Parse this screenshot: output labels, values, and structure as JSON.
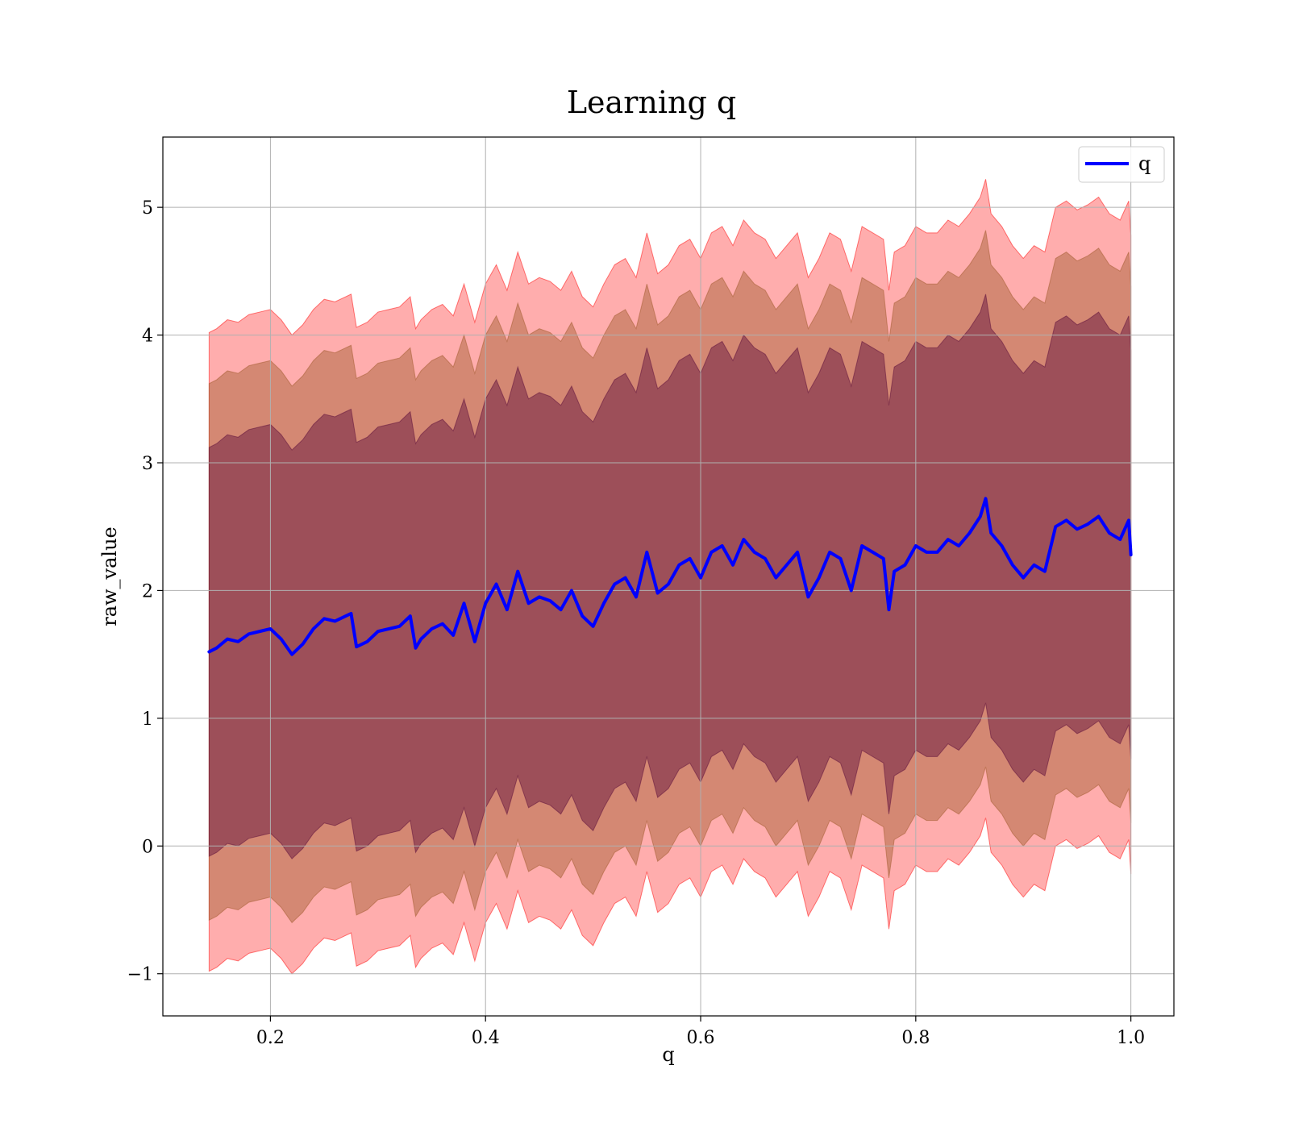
{
  "chart_data": {
    "type": "area",
    "title": "Learning q",
    "xlabel": "q",
    "ylabel": "raw_value",
    "xlim": [
      0.1,
      1.04
    ],
    "ylim": [
      -1.33,
      5.55
    ],
    "xticks": [
      {
        "value": 0.2,
        "label": "0.2"
      },
      {
        "value": 0.4,
        "label": "0.4"
      },
      {
        "value": 0.6,
        "label": "0.6"
      },
      {
        "value": 0.8,
        "label": "0.8"
      },
      {
        "value": 1.0,
        "label": "1.0"
      }
    ],
    "yticks": [
      {
        "value": -1,
        "label": "−1"
      },
      {
        "value": 0,
        "label": "0"
      },
      {
        "value": 1,
        "label": "1"
      },
      {
        "value": 2,
        "label": "2"
      },
      {
        "value": 3,
        "label": "3"
      },
      {
        "value": 4,
        "label": "4"
      },
      {
        "value": 5,
        "label": "5"
      }
    ],
    "grid": true,
    "legend": {
      "position": "top-right",
      "entries": [
        "q"
      ]
    },
    "colors": {
      "line": "#0000ff",
      "band_outer": "#ff0000",
      "band_middle": "#a05a2c",
      "band_inner": "#5a0c3a",
      "grid": "#b0b0b0"
    },
    "series": [
      {
        "name": "q",
        "x": [
          0.143,
          0.15,
          0.16,
          0.17,
          0.18,
          0.19,
          0.2,
          0.21,
          0.22,
          0.23,
          0.24,
          0.25,
          0.26,
          0.27,
          0.275,
          0.28,
          0.29,
          0.3,
          0.31,
          0.32,
          0.33,
          0.335,
          0.34,
          0.35,
          0.36,
          0.37,
          0.38,
          0.39,
          0.4,
          0.41,
          0.42,
          0.43,
          0.44,
          0.45,
          0.46,
          0.47,
          0.48,
          0.49,
          0.5,
          0.51,
          0.52,
          0.53,
          0.54,
          0.55,
          0.56,
          0.57,
          0.58,
          0.59,
          0.6,
          0.61,
          0.62,
          0.63,
          0.64,
          0.65,
          0.66,
          0.67,
          0.68,
          0.69,
          0.7,
          0.71,
          0.72,
          0.73,
          0.74,
          0.75,
          0.76,
          0.77,
          0.775,
          0.78,
          0.79,
          0.8,
          0.81,
          0.82,
          0.83,
          0.84,
          0.85,
          0.86,
          0.865,
          0.87,
          0.88,
          0.89,
          0.9,
          0.91,
          0.92,
          0.93,
          0.94,
          0.95,
          0.96,
          0.97,
          0.98,
          0.99,
          0.998,
          1.0
        ],
        "values": [
          1.52,
          1.55,
          1.62,
          1.6,
          1.66,
          1.68,
          1.7,
          1.62,
          1.5,
          1.58,
          1.7,
          1.78,
          1.76,
          1.8,
          1.82,
          1.56,
          1.6,
          1.68,
          1.7,
          1.72,
          1.8,
          1.55,
          1.62,
          1.7,
          1.74,
          1.65,
          1.9,
          1.6,
          1.9,
          2.05,
          1.85,
          2.15,
          1.9,
          1.95,
          1.92,
          1.85,
          2.0,
          1.8,
          1.72,
          1.9,
          2.05,
          2.1,
          1.95,
          2.3,
          1.98,
          2.05,
          2.2,
          2.25,
          2.1,
          2.3,
          2.35,
          2.2,
          2.4,
          2.3,
          2.25,
          2.1,
          2.2,
          2.3,
          1.95,
          2.1,
          2.3,
          2.25,
          2.0,
          2.35,
          2.3,
          2.25,
          1.85,
          2.15,
          2.2,
          2.35,
          2.3,
          2.3,
          2.4,
          2.35,
          2.45,
          2.58,
          2.72,
          2.45,
          2.35,
          2.2,
          2.1,
          2.2,
          2.15,
          2.5,
          2.55,
          2.48,
          2.52,
          2.58,
          2.45,
          2.4,
          2.55,
          2.28
        ],
        "bands": {
          "outer": {
            "lower_offset": -2.5,
            "upper_offset": 2.5
          },
          "middle": {
            "lower_offset": -2.1,
            "upper_offset": 2.1
          },
          "inner": {
            "lower_offset": -1.6,
            "upper_offset": 1.6
          }
        }
      }
    ]
  }
}
